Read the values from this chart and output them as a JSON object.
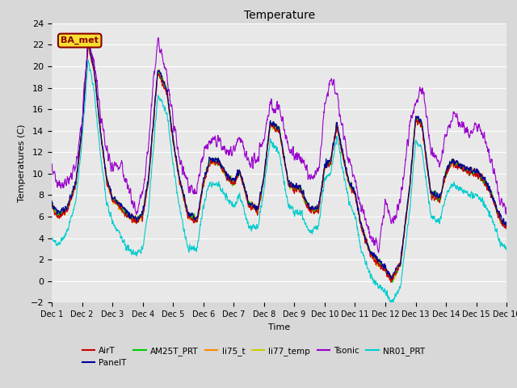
{
  "title": "Temperature",
  "xlabel": "Time",
  "ylabel": "Temperatures (C)",
  "ylim": [
    -2,
    24
  ],
  "xlim": [
    0,
    15
  ],
  "xtick_labels": [
    "Dec 1",
    "Dec 2",
    "Dec 3",
    "Dec 4",
    "Dec 5",
    "Dec 6",
    "Dec 7",
    "Dec 8",
    "Dec 9",
    "Dec 10",
    "Dec 11",
    "Dec 12",
    "Dec 13",
    "Dec 14",
    "Dec 15",
    "Dec 16"
  ],
  "ytick_vals": [
    -2,
    0,
    2,
    4,
    6,
    8,
    10,
    12,
    14,
    16,
    18,
    20,
    22,
    24
  ],
  "series": {
    "AirT": {
      "color": "#cc0000",
      "lw": 0.8
    },
    "PanelT": {
      "color": "#000099",
      "lw": 0.8
    },
    "AM25T_PRT": {
      "color": "#00cc00",
      "lw": 0.8
    },
    "li75_t": {
      "color": "#ff8800",
      "lw": 0.8
    },
    "li77_temp": {
      "color": "#cccc00",
      "lw": 0.8
    },
    "Tsonic": {
      "color": "#9900cc",
      "lw": 0.8
    },
    "NR01_PRT": {
      "color": "#00cccc",
      "lw": 0.8
    }
  },
  "ba_met_label": "BA_met",
  "background_color": "#e8e8e8",
  "n_points": 2160
}
